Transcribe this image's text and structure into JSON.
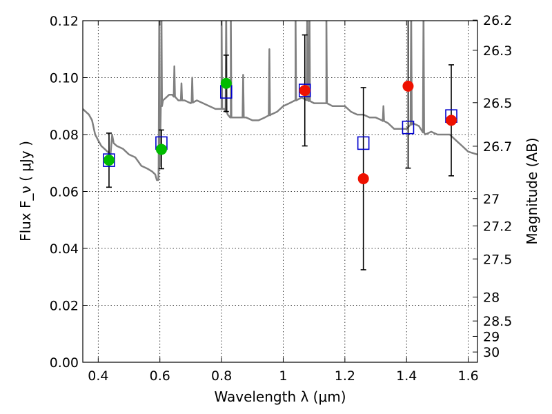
{
  "chart_data": {
    "type": "scatter",
    "xlabel": "Wavelength  λ (μm)",
    "ylabel": "Flux  F_ν  ( μJy )",
    "ylabel_right": "Magnitude (AB)",
    "xlim": [
      0.35,
      1.63
    ],
    "ylim": [
      0.0,
      0.12
    ],
    "grid": true,
    "x_ticks": [
      0.4,
      0.6,
      0.8,
      1.0,
      1.2,
      1.4,
      1.6
    ],
    "x_tick_labels": [
      "0.4",
      "0.6",
      "0.8",
      "1",
      "1.2",
      "1.4",
      "1.6"
    ],
    "y_ticks": [
      0.0,
      0.02,
      0.04,
      0.06,
      0.08,
      0.1,
      0.12
    ],
    "y_tick_labels": [
      "0.00",
      "0.02",
      "0.04",
      "0.06",
      "0.08",
      "0.10",
      "0.12"
    ],
    "right_ticks": [
      {
        "label": "26.2",
        "flux": 0.1202
      },
      {
        "label": "26.3",
        "flux": 0.1096
      },
      {
        "label": "26.5",
        "flux": 0.0912
      },
      {
        "label": "26.7",
        "flux": 0.0759
      },
      {
        "label": "27",
        "flux": 0.0575
      },
      {
        "label": "27.2",
        "flux": 0.0479
      },
      {
        "label": "27.5",
        "flux": 0.0363
      },
      {
        "label": "28",
        "flux": 0.0229
      },
      {
        "label": "28.5",
        "flux": 0.0145
      },
      {
        "label": "29",
        "flux": 0.0091
      },
      {
        "label": "30",
        "flux": 0.0036
      }
    ],
    "series": [
      {
        "kind": "model-spectrum",
        "color": "#808080",
        "x": [
          0.35,
          0.37,
          0.38,
          0.39,
          0.4,
          0.41,
          0.42,
          0.43,
          0.44,
          0.445,
          0.45,
          0.46,
          0.48,
          0.5,
          0.52,
          0.54,
          0.56,
          0.575,
          0.585,
          0.59,
          0.595,
          0.6,
          0.605,
          0.61,
          0.62,
          0.63,
          0.64,
          0.66,
          0.68,
          0.7,
          0.72,
          0.74,
          0.76,
          0.78,
          0.8,
          0.81,
          0.82,
          0.83,
          0.84,
          0.86,
          0.88,
          0.9,
          0.92,
          0.94,
          0.96,
          0.98,
          1.0,
          1.02,
          1.04,
          1.06,
          1.08,
          1.1,
          1.12,
          1.14,
          1.16,
          1.18,
          1.2,
          1.22,
          1.24,
          1.26,
          1.28,
          1.3,
          1.32,
          1.34,
          1.36,
          1.38,
          1.4,
          1.42,
          1.44,
          1.46,
          1.48,
          1.5,
          1.52,
          1.54,
          1.56,
          1.58,
          1.6,
          1.63
        ],
        "y": [
          0.089,
          0.087,
          0.085,
          0.08,
          0.078,
          0.076,
          0.075,
          0.074,
          0.073,
          0.08,
          0.077,
          0.076,
          0.075,
          0.073,
          0.072,
          0.069,
          0.068,
          0.067,
          0.066,
          0.064,
          0.064,
          0.072,
          0.09,
          0.092,
          0.093,
          0.094,
          0.094,
          0.092,
          0.092,
          0.091,
          0.092,
          0.091,
          0.09,
          0.089,
          0.089,
          0.089,
          0.087,
          0.086,
          0.086,
          0.086,
          0.086,
          0.085,
          0.085,
          0.086,
          0.087,
          0.088,
          0.09,
          0.091,
          0.092,
          0.093,
          0.092,
          0.091,
          0.091,
          0.091,
          0.09,
          0.09,
          0.09,
          0.088,
          0.087,
          0.087,
          0.086,
          0.086,
          0.085,
          0.084,
          0.082,
          0.082,
          0.082,
          0.084,
          0.083,
          0.08,
          0.081,
          0.08,
          0.08,
          0.08,
          0.078,
          0.076,
          0.074,
          0.073
        ]
      },
      {
        "kind": "model-fluxes",
        "marker": "open-square",
        "color": "#0000cc",
        "x": [
          0.435,
          0.605,
          0.815,
          1.07,
          1.26,
          1.405,
          1.545
        ],
        "y": [
          0.071,
          0.077,
          0.095,
          0.0955,
          0.077,
          0.0825,
          0.0865
        ]
      },
      {
        "kind": "observed",
        "marker": "circle",
        "color": "#00bb00",
        "x": [
          0.435,
          0.605,
          0.815
        ],
        "y": [
          0.071,
          0.0748,
          0.098
        ],
        "err": [
          0.0095,
          0.0068,
          0.0099
        ]
      },
      {
        "kind": "observed",
        "marker": "circle",
        "color": "#ee1100",
        "x": [
          1.07,
          1.26,
          1.405,
          1.545
        ],
        "y": [
          0.0955,
          0.0645,
          0.097,
          0.085
        ],
        "err": [
          0.0195,
          0.032,
          0.0288,
          0.0195
        ]
      }
    ],
    "emission_lines": [
      {
        "x": 0.598,
        "peak": 0.124
      },
      {
        "x": 0.605,
        "peak": 0.124
      },
      {
        "x": 0.647,
        "peak": 0.104
      },
      {
        "x": 0.67,
        "peak": 0.098
      },
      {
        "x": 0.705,
        "peak": 0.1
      },
      {
        "x": 0.8,
        "peak": 0.124
      },
      {
        "x": 0.815,
        "peak": 0.124
      },
      {
        "x": 0.83,
        "peak": 0.124
      },
      {
        "x": 0.87,
        "peak": 0.101
      },
      {
        "x": 0.955,
        "peak": 0.11
      },
      {
        "x": 1.04,
        "peak": 0.124
      },
      {
        "x": 1.078,
        "peak": 0.124
      },
      {
        "x": 1.085,
        "peak": 0.124
      },
      {
        "x": 1.14,
        "peak": 0.123
      },
      {
        "x": 1.325,
        "peak": 0.09
      },
      {
        "x": 1.415,
        "peak": 0.124
      },
      {
        "x": 1.455,
        "peak": 0.124
      }
    ]
  }
}
